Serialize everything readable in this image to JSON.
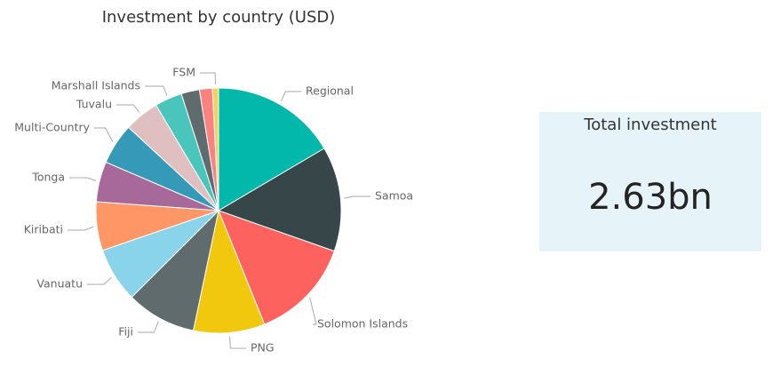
{
  "chart_data": {
    "type": "pie",
    "title": "Investment by country (USD)",
    "categories": [
      "Regional",
      "Samoa",
      "Solomon Islands",
      "PNG",
      "Fiji",
      "Vanuatu",
      "Kiribati",
      "Tonga",
      "Multi-Country",
      "Tuvalu",
      "Marshall Islands",
      null,
      null,
      "FSM"
    ],
    "values": [
      16.5,
      13.8,
      13.5,
      9.4,
      9.2,
      7.2,
      6.4,
      5.3,
      5.4,
      4.6,
      3.6,
      2.4,
      1.7,
      0.8
    ],
    "colors": [
      "#01b8aa",
      "#374649",
      "#fd625e",
      "#f2c80f",
      "#5f6b6d",
      "#8ad4eb",
      "#fe9666",
      "#a66999",
      "#3599b8",
      "#dfbfbf",
      "#4ac5bb",
      "#5f6b6d",
      "#fb8281",
      "#f4d25a"
    ]
  },
  "card": {
    "title": "Total investment",
    "value": "2.63bn"
  }
}
